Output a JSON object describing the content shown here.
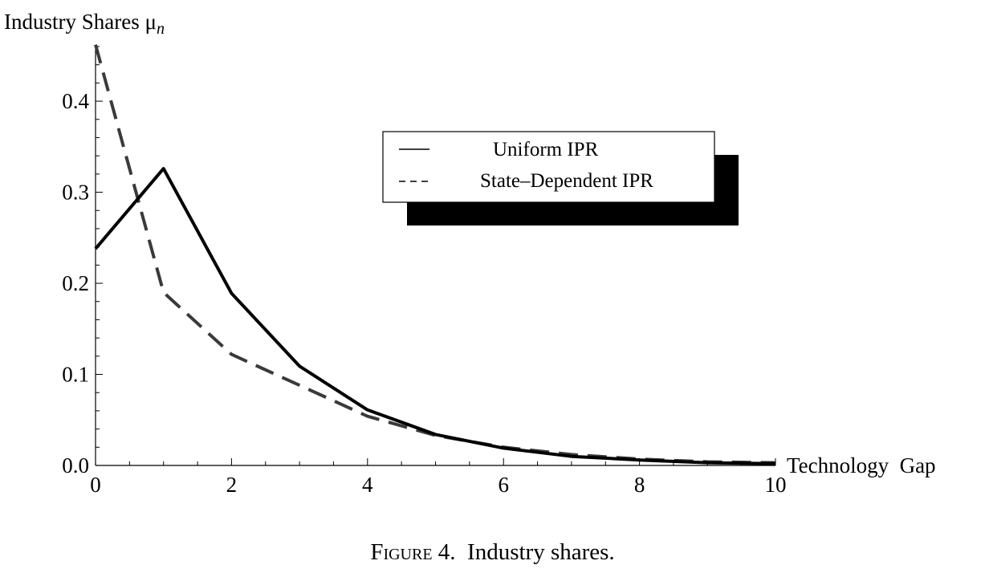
{
  "chart_data": {
    "type": "line",
    "ylabel_main": "Industry Shares μ",
    "ylabel_sub": "n",
    "xlabel": "Technology  Gap",
    "xlim": [
      0,
      10
    ],
    "ylim": [
      0,
      0.46
    ],
    "xticks": [
      0,
      2,
      4,
      6,
      8,
      10
    ],
    "yticks": [
      0.0,
      0.1,
      0.2,
      0.3,
      0.4
    ],
    "ytick_labels": [
      "0.0",
      "0.1",
      "0.2",
      "0.3",
      "0.4"
    ],
    "grid": false,
    "legend_position": "top-right",
    "series": [
      {
        "name": "Uniform IPR",
        "style": "solid",
        "color": "#000000",
        "x": [
          0,
          1,
          2,
          3,
          4,
          5,
          6,
          7,
          8,
          9,
          10
        ],
        "y": [
          0.238,
          0.326,
          0.189,
          0.109,
          0.061,
          0.034,
          0.019,
          0.01,
          0.006,
          0.003,
          0.002
        ]
      },
      {
        "name": "State–Dependent IPR",
        "style": "dashed",
        "color": "#3a3a3a",
        "x": [
          0,
          1,
          2,
          3,
          4,
          5,
          6,
          7,
          8,
          9,
          10
        ],
        "y": [
          0.462,
          0.19,
          0.122,
          0.088,
          0.054,
          0.033,
          0.02,
          0.012,
          0.007,
          0.004,
          0.003
        ]
      }
    ]
  },
  "caption": {
    "label": "Figure",
    "number": "4.",
    "text": "Industry shares."
  }
}
